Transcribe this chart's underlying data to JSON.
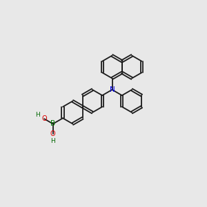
{
  "bg": "#e8e8e8",
  "bc": "#1a1a1a",
  "N_color": "#0000ee",
  "B_color": "#007700",
  "O_color": "#dd0000",
  "H_color": "#006600",
  "lw": 1.3,
  "dbo": 0.032,
  "r": 0.33,
  "xlim": [
    -0.3,
    5.5
  ],
  "ylim": [
    -0.2,
    5.8
  ]
}
